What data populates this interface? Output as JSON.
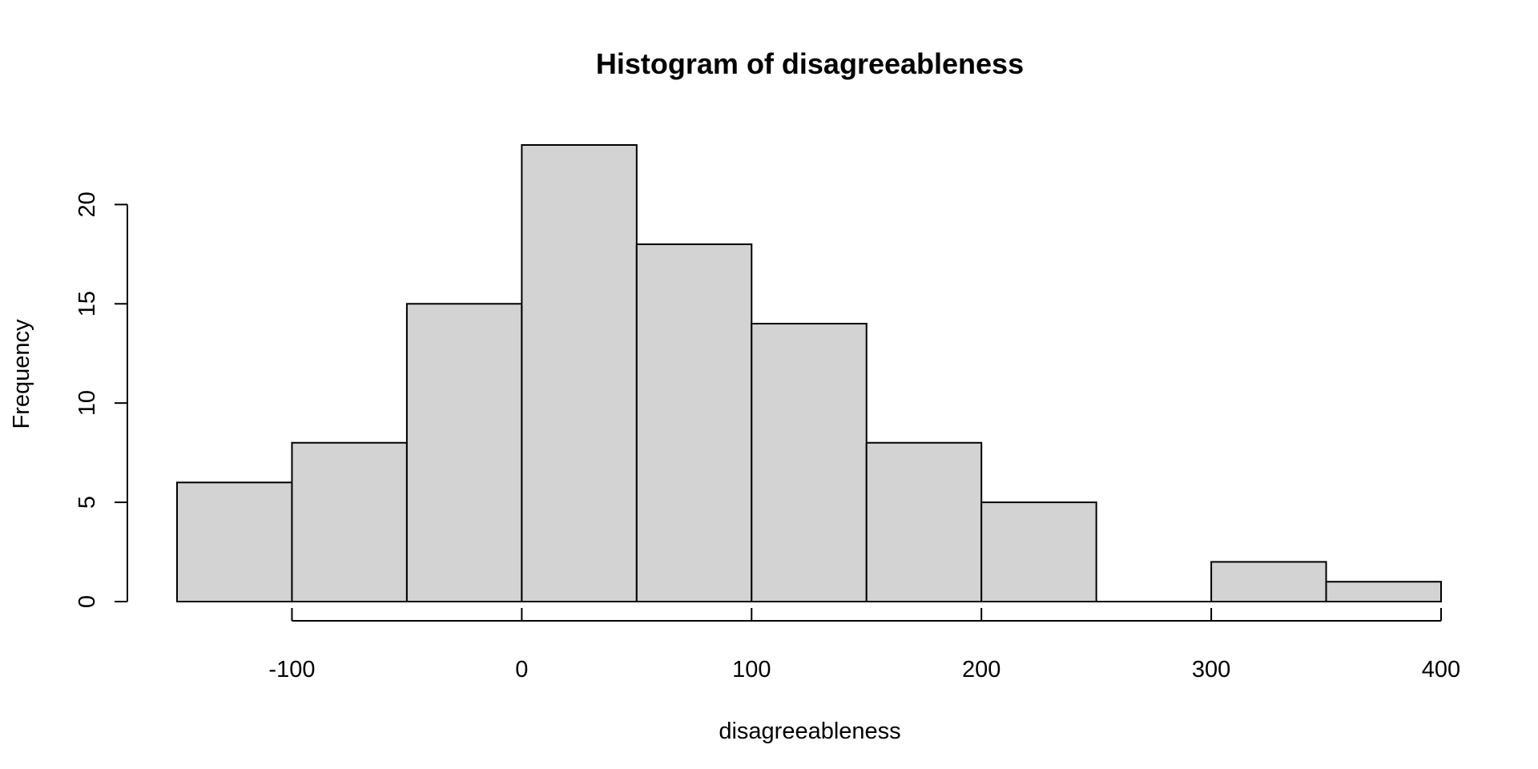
{
  "chart_data": {
    "type": "bar",
    "title": "Histogram of disagreeableness",
    "xlabel": "disagreeableness",
    "ylabel": "Frequency",
    "bin_edges": [
      -150,
      -100,
      -50,
      0,
      50,
      100,
      150,
      200,
      250,
      300,
      350,
      400
    ],
    "values": [
      6,
      8,
      15,
      23,
      18,
      14,
      8,
      5,
      0,
      2,
      1
    ],
    "xlim": [
      -150,
      400
    ],
    "ylim": [
      0,
      23
    ],
    "x_ticks": [
      -100,
      0,
      100,
      200,
      300,
      400
    ],
    "y_ticks": [
      0,
      5,
      10,
      15,
      20
    ],
    "bar_color": "#d3d3d3",
    "edge_color": "#000000",
    "grid": false,
    "legend": "none"
  }
}
